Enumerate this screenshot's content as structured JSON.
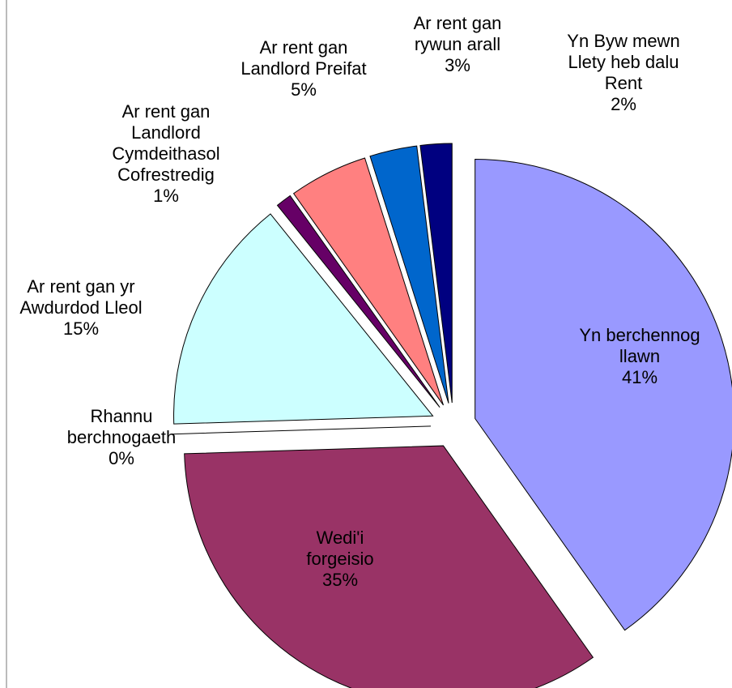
{
  "chart_data": {
    "type": "pie",
    "categories": [
      "Yn berchennog llawn",
      "Wedi'i forgeisio",
      "Rhannu berchnogaeth",
      "Ar rent gan yr Awdurdod Lleol",
      "Ar rent gan Landlord Cymdeithasol Cofrestredig",
      "Ar rent gan Landlord Preifat",
      "Ar rent gan rywun arall",
      "Yn Byw mewn Llety heb dalu Rent"
    ],
    "values": [
      41,
      35,
      0,
      15,
      1,
      5,
      3,
      2
    ],
    "value_labels": [
      "41%",
      "35%",
      "0%",
      "15%",
      "1%",
      "5%",
      "3%",
      "2%"
    ],
    "colors": [
      "#9999ff",
      "#993366",
      "#ffffcc",
      "#ccffff",
      "#660066",
      "#ff8080",
      "#0066cc",
      "#000080"
    ]
  }
}
